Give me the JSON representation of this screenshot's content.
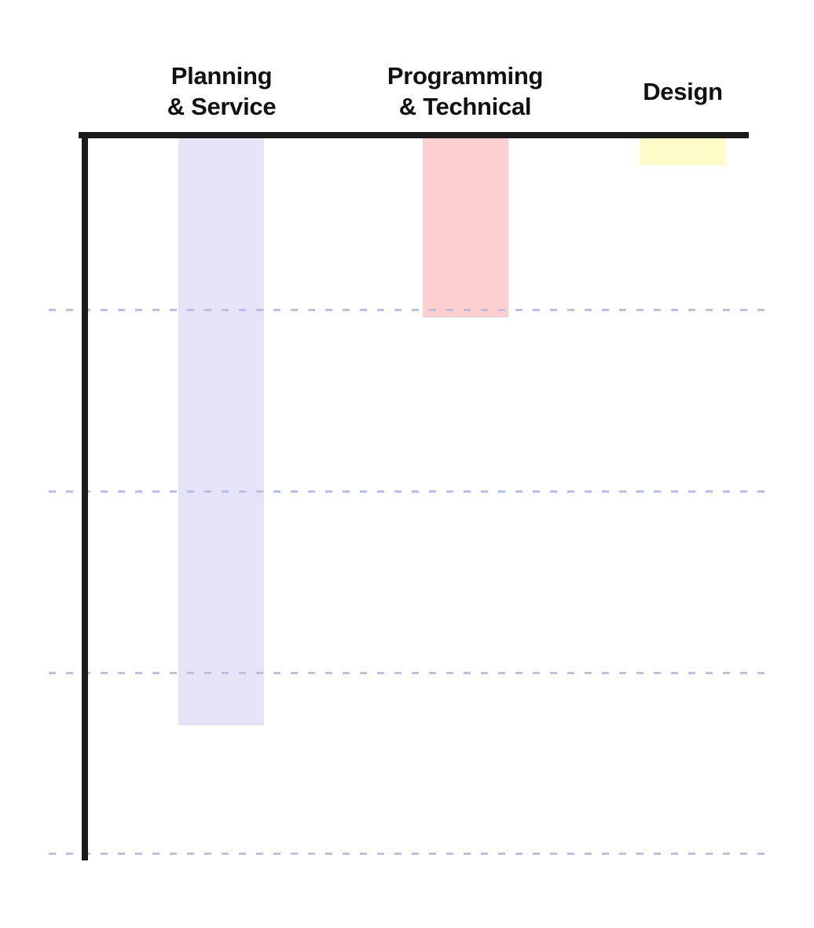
{
  "chart_data": {
    "type": "bar",
    "title": "",
    "orientation": "columns hang downward from a top baseline (inverted value axis, no numeric tick labels)",
    "categories": [
      "Planning & Service",
      "Programming & Technical",
      "Design"
    ],
    "values": [
      3.29,
      1.04,
      0.2
    ],
    "value_units": "gridline intervals (estimated; axis shows no numbers)",
    "ylim": [
      0,
      4
    ],
    "gridline_units": [
      1,
      2,
      3,
      4
    ],
    "grid_style": "dashed",
    "grid_on": true,
    "legend": "none",
    "xlabel": "",
    "ylabel": "",
    "bar_colors": [
      "#e5e3f8",
      "#fccfd0",
      "#fdfcc9"
    ],
    "axis_color": "#1b1b1b",
    "grid_color": "#b9bce8"
  },
  "columns": [
    {
      "line1": "Planning",
      "line2": "& Service"
    },
    {
      "line1": "Programming",
      "line2": "& Technical"
    },
    {
      "line1": "Design",
      "line2": ""
    }
  ]
}
